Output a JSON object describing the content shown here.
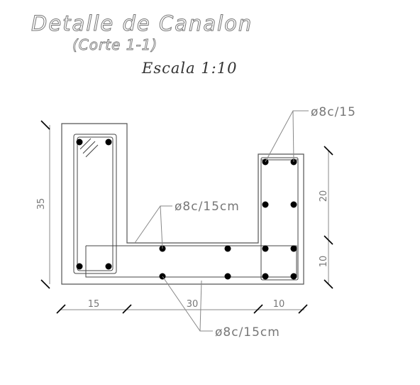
{
  "title": "Detalle de Canalon",
  "subtitle": "(Corte 1-1)",
  "scale": "Escala 1:10",
  "dimensions": {
    "left_height": "35",
    "right_upper": "20",
    "right_lower": "10",
    "bottom_left": "15",
    "bottom_middle": "30",
    "bottom_right": "10"
  },
  "reinforcement_labels": {
    "top_right": "ø8c/15",
    "middle": "ø8c/15cm",
    "bottom": "ø8c/15cm"
  },
  "colors": {
    "text": "#777777",
    "bars": "#000000"
  }
}
